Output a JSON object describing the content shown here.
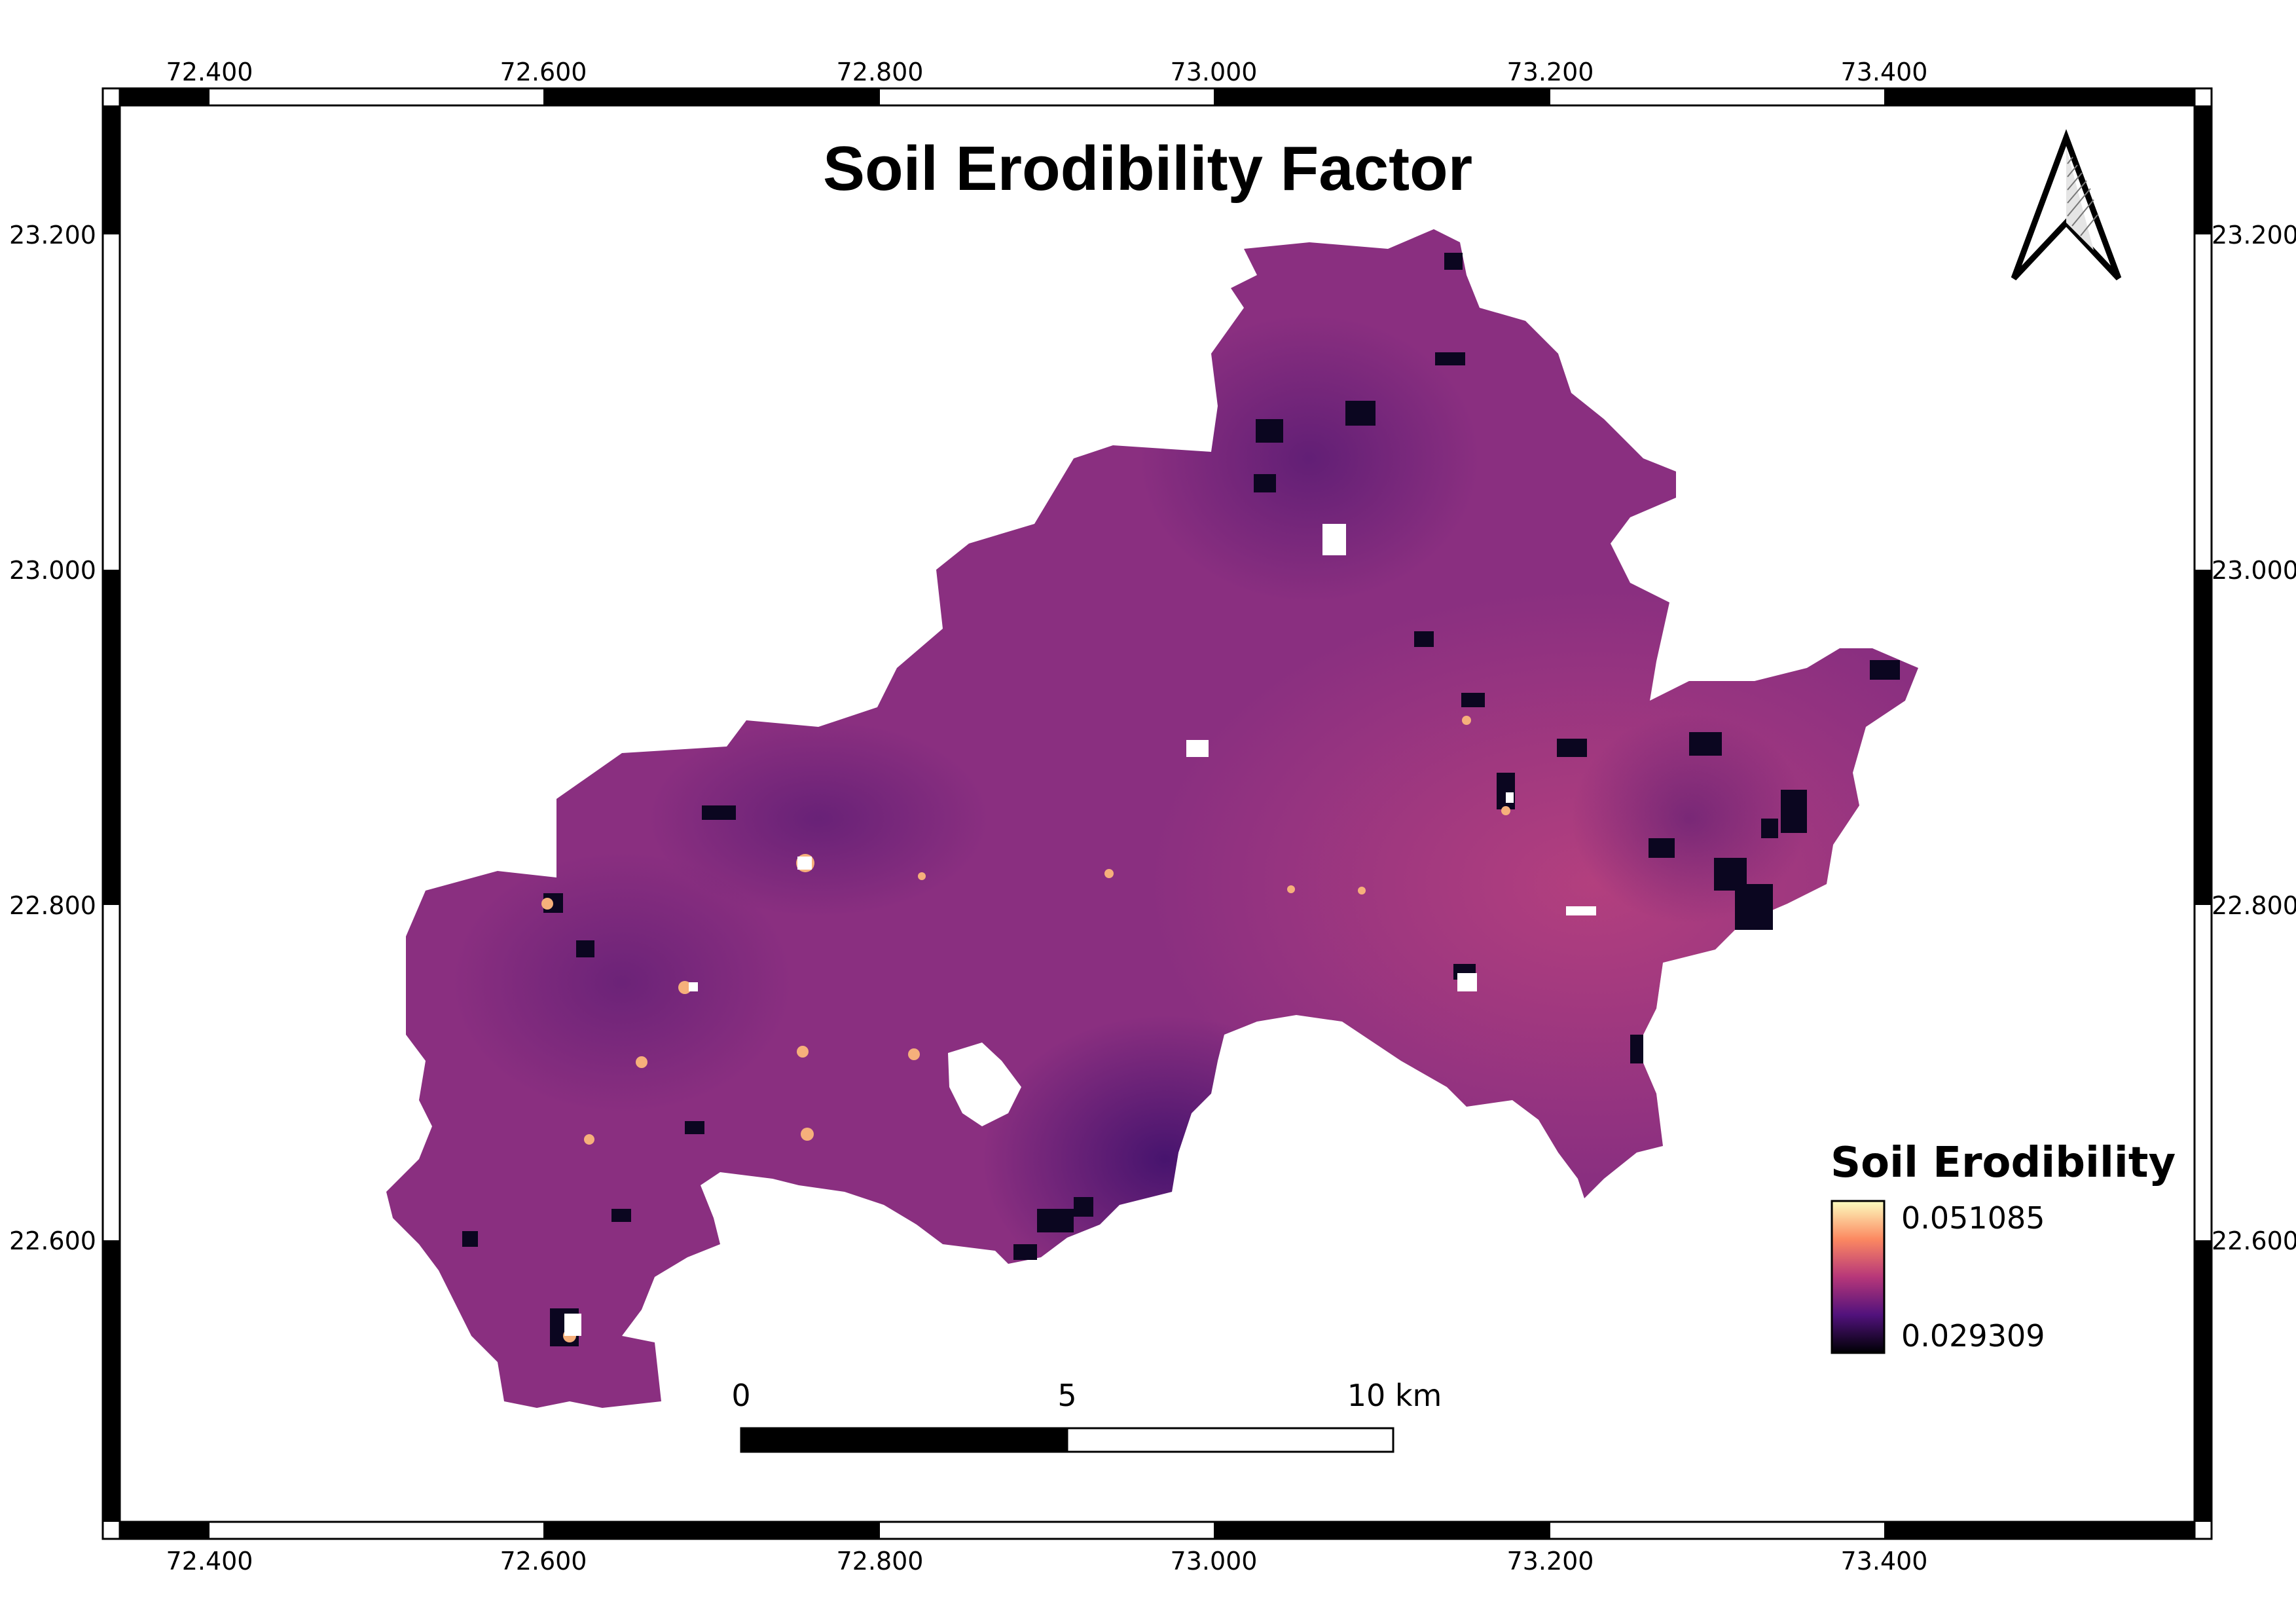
{
  "map": {
    "title": "Soil Erodibility Factor",
    "grid": {
      "lon_labels": [
        "72.400",
        "72.600",
        "72.800",
        "73.000",
        "73.200",
        "73.400"
      ],
      "lat_labels": [
        "23.200",
        "23.000",
        "22.800",
        "22.600"
      ]
    },
    "legend": {
      "title": "Soil Erodibility",
      "max_label": "0.051085",
      "min_label": "0.029309",
      "ramp": "magma",
      "colors": [
        "#fcfdbf",
        "#fc8961",
        "#b73779",
        "#51127c",
        "#000004"
      ]
    },
    "scale_bar": {
      "labels": [
        "0",
        "5",
        "10 km"
      ]
    },
    "north_arrow": {
      "icon": "north-arrow-icon"
    },
    "raster": {
      "base_color": "#8a2f80",
      "dark_color": "#5a1e7a",
      "hotspot_color": "#c0457e",
      "nodata_patch_color": "#0b0620",
      "high_spot_color": "#f6b07b"
    }
  }
}
